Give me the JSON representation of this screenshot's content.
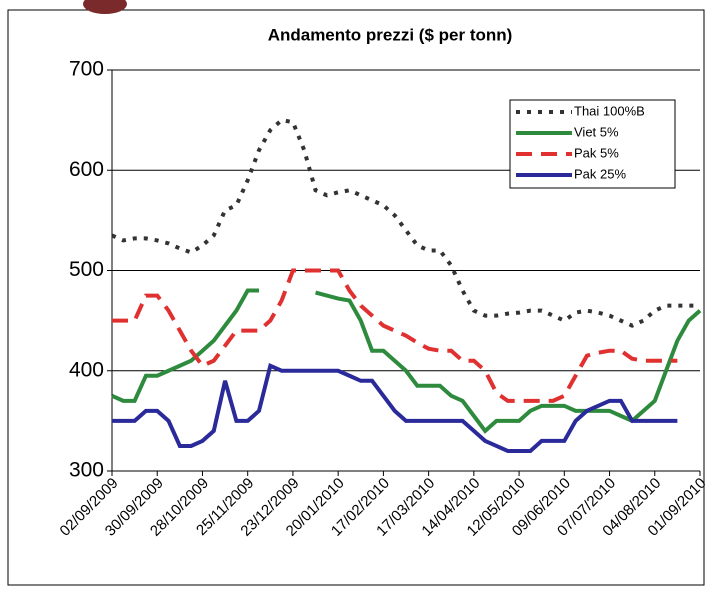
{
  "chart_data": {
    "type": "line",
    "title": "Andamento prezzi ($ per tonn)",
    "categories": [
      "02/09/2009",
      null,
      null,
      null,
      "30/09/2009",
      null,
      null,
      null,
      "28/10/2009",
      null,
      null,
      null,
      "25/11/2009",
      null,
      null,
      null,
      "23/12/2009",
      null,
      null,
      null,
      "20/01/2010",
      null,
      null,
      null,
      "17/02/2010",
      null,
      null,
      null,
      "17/03/2010",
      null,
      null,
      null,
      "14/04/2010",
      null,
      null,
      null,
      "12/05/2010",
      null,
      null,
      null,
      "09/06/2010",
      null,
      null,
      null,
      "07/07/2010",
      null,
      null,
      null,
      "04/08/2010",
      null,
      null,
      null,
      "01/09/2010"
    ],
    "series": [
      {
        "name": "Thai 100%B",
        "color": "#333333",
        "line_style": "dotted",
        "values": [
          535,
          530,
          532,
          532,
          530,
          527,
          522,
          518,
          525,
          535,
          560,
          565,
          590,
          620,
          640,
          650,
          648,
          620,
          580,
          575,
          578,
          580,
          575,
          570,
          565,
          555,
          540,
          525,
          520,
          520,
          505,
          480,
          460,
          455,
          455,
          457,
          458,
          460,
          460,
          455,
          450,
          458,
          460,
          458,
          455,
          450,
          445,
          450,
          460,
          465,
          465,
          465,
          465
        ]
      },
      {
        "name": "Viet 5%",
        "color": "#2e8b3e",
        "line_style": "solid",
        "values": [
          375,
          370,
          370,
          395,
          395,
          400,
          405,
          410,
          420,
          430,
          445,
          460,
          480,
          480,
          null,
          null,
          null,
          null,
          478,
          475,
          472,
          470,
          450,
          420,
          420,
          410,
          400,
          385,
          385,
          385,
          375,
          370,
          355,
          340,
          350,
          350,
          350,
          360,
          365,
          365,
          365,
          360,
          360,
          360,
          360,
          355,
          350,
          360,
          370,
          400,
          430,
          450,
          460
        ]
      },
      {
        "name": "Pak 5%",
        "color": "#e03030",
        "line_style": "dashed",
        "values": [
          450,
          450,
          450,
          475,
          475,
          460,
          440,
          420,
          405,
          410,
          425,
          440,
          440,
          440,
          450,
          470,
          500,
          500,
          500,
          500,
          500,
          480,
          465,
          455,
          445,
          440,
          435,
          428,
          422,
          420,
          420,
          410,
          410,
          400,
          378,
          370,
          370,
          370,
          370,
          370,
          375,
          395,
          415,
          418,
          420,
          420,
          412,
          410,
          410,
          410,
          410,
          null,
          null
        ]
      },
      {
        "name": "Pak 25%",
        "color": "#2a2a9a",
        "line_style": "solid",
        "values": [
          350,
          350,
          350,
          360,
          360,
          350,
          325,
          325,
          330,
          340,
          390,
          350,
          350,
          360,
          405,
          400,
          400,
          400,
          400,
          400,
          400,
          395,
          390,
          390,
          375,
          360,
          350,
          350,
          350,
          350,
          350,
          350,
          340,
          330,
          325,
          320,
          320,
          320,
          330,
          330,
          330,
          350,
          360,
          365,
          370,
          370,
          350,
          350,
          350,
          350,
          350,
          null,
          null
        ]
      }
    ],
    "ylim": [
      300,
      700
    ],
    "yticks": [
      300,
      400,
      500,
      600,
      700
    ],
    "grid": true,
    "legend": "top-right"
  }
}
